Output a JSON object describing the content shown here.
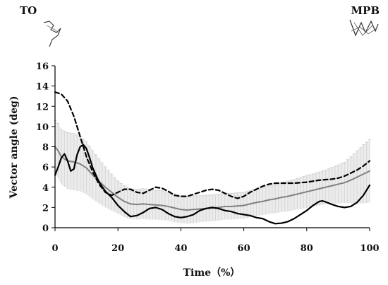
{
  "figure": {
    "left_label": "TO",
    "right_label": "MPB"
  },
  "chart_data": {
    "type": "line",
    "xlabel": "Time（%）",
    "ylabel": "Vector angle (deg)",
    "xlim": [
      0,
      100
    ],
    "ylim": [
      0,
      16
    ],
    "xticks": [
      0,
      20,
      40,
      60,
      80,
      100
    ],
    "yticks": [
      0,
      2,
      4,
      6,
      8,
      10,
      12,
      14,
      16
    ],
    "grid": false,
    "legend": "none",
    "series": [
      {
        "style": "solid",
        "color": "#000000",
        "x": [
          0,
          1,
          2,
          3,
          4,
          5,
          6,
          7,
          8,
          9,
          10,
          11,
          12,
          14,
          16,
          18,
          20,
          22,
          24,
          26,
          28,
          30,
          32,
          34,
          36,
          38,
          40,
          42,
          44,
          46,
          48,
          50,
          52,
          54,
          56,
          58,
          60,
          62,
          64,
          66,
          68,
          70,
          72,
          74,
          76,
          78,
          80,
          82,
          84,
          85,
          86,
          88,
          90,
          92,
          94,
          96,
          98,
          100
        ],
        "values": [
          5.2,
          6.0,
          6.9,
          7.3,
          6.6,
          5.6,
          5.8,
          7.2,
          8.0,
          8.2,
          7.8,
          6.9,
          5.9,
          4.5,
          3.6,
          3.0,
          2.2,
          1.6,
          1.1,
          1.2,
          1.5,
          1.9,
          2.0,
          1.8,
          1.4,
          1.1,
          1.0,
          1.1,
          1.3,
          1.7,
          1.9,
          2.0,
          1.9,
          1.7,
          1.6,
          1.4,
          1.3,
          1.2,
          1.0,
          0.9,
          0.6,
          0.4,
          0.45,
          0.6,
          0.9,
          1.3,
          1.7,
          2.2,
          2.6,
          2.65,
          2.55,
          2.3,
          2.1,
          2.0,
          2.1,
          2.5,
          3.2,
          4.2
        ]
      },
      {
        "style": "dashed",
        "color": "#000000",
        "x": [
          0,
          2,
          4,
          6,
          8,
          10,
          12,
          14,
          16,
          18,
          20,
          22,
          24,
          26,
          28,
          30,
          32,
          34,
          36,
          38,
          40,
          42,
          44,
          46,
          48,
          50,
          52,
          54,
          56,
          58,
          60,
          62,
          64,
          66,
          68,
          70,
          72,
          74,
          76,
          78,
          80,
          82,
          84,
          86,
          88,
          90,
          92,
          94,
          96,
          98,
          100
        ],
        "values": [
          13.4,
          13.2,
          12.5,
          11.0,
          9.0,
          7.0,
          5.5,
          4.3,
          3.5,
          3.2,
          3.5,
          3.8,
          3.8,
          3.5,
          3.4,
          3.7,
          4.0,
          3.9,
          3.6,
          3.2,
          3.1,
          3.1,
          3.3,
          3.5,
          3.7,
          3.8,
          3.7,
          3.4,
          3.1,
          2.9,
          3.1,
          3.5,
          3.8,
          4.1,
          4.3,
          4.4,
          4.4,
          4.4,
          4.4,
          4.45,
          4.5,
          4.6,
          4.7,
          4.75,
          4.8,
          4.9,
          5.1,
          5.4,
          5.7,
          6.1,
          6.6
        ]
      },
      {
        "style": "solid",
        "color": "#808080",
        "x": [
          0,
          1,
          2,
          4,
          6,
          8,
          10,
          12,
          14,
          16,
          18,
          20,
          22,
          24,
          26,
          28,
          30,
          32,
          34,
          36,
          38,
          40,
          42,
          44,
          46,
          48,
          50,
          52,
          54,
          56,
          58,
          60,
          62,
          64,
          66,
          68,
          70,
          72,
          74,
          76,
          78,
          80,
          82,
          84,
          86,
          88,
          90,
          92,
          94,
          96,
          98,
          100
        ],
        "values": [
          8.0,
          7.6,
          7.0,
          6.6,
          6.5,
          6.3,
          5.9,
          5.2,
          4.6,
          4.0,
          3.5,
          3.0,
          2.6,
          2.35,
          2.3,
          2.35,
          2.3,
          2.25,
          2.2,
          2.1,
          1.95,
          1.8,
          1.75,
          1.8,
          1.85,
          1.9,
          1.95,
          2.0,
          2.1,
          2.1,
          2.15,
          2.2,
          2.35,
          2.5,
          2.6,
          2.75,
          2.85,
          3.0,
          3.1,
          3.25,
          3.4,
          3.55,
          3.7,
          3.85,
          4.0,
          4.15,
          4.3,
          4.45,
          4.7,
          5.0,
          5.3,
          5.6
        ],
        "sd": [
          2.6,
          2.7,
          2.7,
          2.8,
          2.8,
          2.7,
          2.6,
          2.4,
          2.2,
          2.0,
          1.8,
          1.6,
          1.55,
          1.5,
          1.5,
          1.5,
          1.5,
          1.45,
          1.45,
          1.4,
          1.4,
          1.35,
          1.35,
          1.35,
          1.3,
          1.3,
          1.3,
          1.3,
          1.3,
          1.3,
          1.3,
          1.3,
          1.3,
          1.35,
          1.35,
          1.4,
          1.4,
          1.45,
          1.5,
          1.5,
          1.55,
          1.6,
          1.6,
          1.65,
          1.7,
          1.8,
          1.9,
          2.0,
          2.3,
          2.6,
          2.9,
          3.1
        ]
      }
    ]
  }
}
